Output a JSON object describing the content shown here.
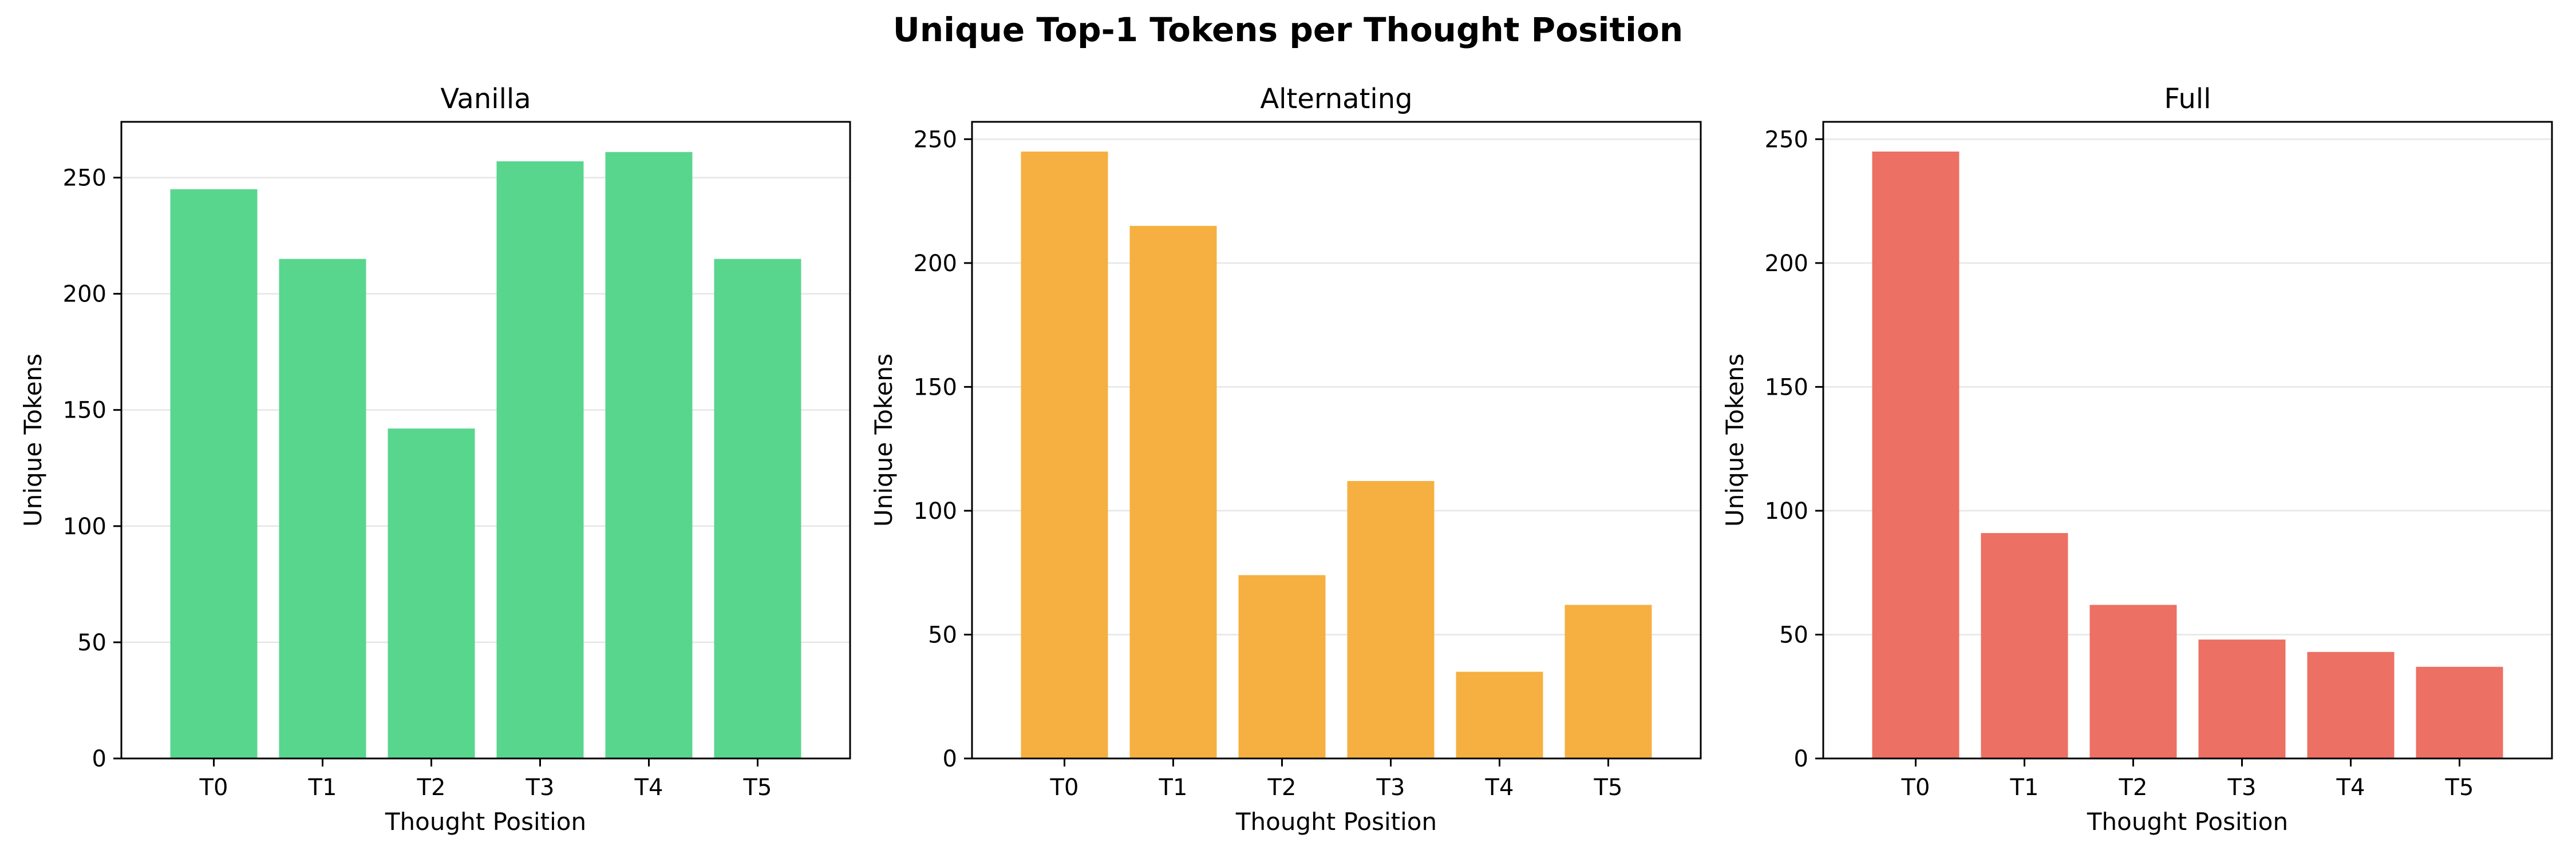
{
  "figure": {
    "title": "Unique Top-1 Tokens per Thought Position"
  },
  "chart_data": [
    {
      "type": "bar",
      "title": "Vanilla",
      "categories": [
        "T0",
        "T1",
        "T2",
        "T3",
        "T4",
        "T5"
      ],
      "values": [
        245,
        215,
        142,
        257,
        261,
        215
      ],
      "xlabel": "Thought Position",
      "ylabel": "Unique Tokens",
      "ylim": [
        0,
        274
      ],
      "yticks": [
        0,
        50,
        100,
        150,
        200,
        250
      ],
      "grid": "y",
      "color": "#58d68d"
    },
    {
      "type": "bar",
      "title": "Alternating",
      "categories": [
        "T0",
        "T1",
        "T2",
        "T3",
        "T4",
        "T5"
      ],
      "values": [
        245,
        215,
        74,
        112,
        35,
        62
      ],
      "xlabel": "Thought Position",
      "ylabel": "Unique Tokens",
      "ylim": [
        0,
        257
      ],
      "yticks": [
        0,
        50,
        100,
        150,
        200,
        250
      ],
      "grid": "y",
      "color": "#f5b041"
    },
    {
      "type": "bar",
      "title": "Full",
      "categories": [
        "T0",
        "T1",
        "T2",
        "T3",
        "T4",
        "T5"
      ],
      "values": [
        245,
        91,
        62,
        48,
        43,
        37
      ],
      "xlabel": "Thought Position",
      "ylabel": "Unique Tokens",
      "ylim": [
        0,
        257
      ],
      "yticks": [
        0,
        50,
        100,
        150,
        200,
        250
      ],
      "grid": "y",
      "color": "#ec7063"
    }
  ]
}
